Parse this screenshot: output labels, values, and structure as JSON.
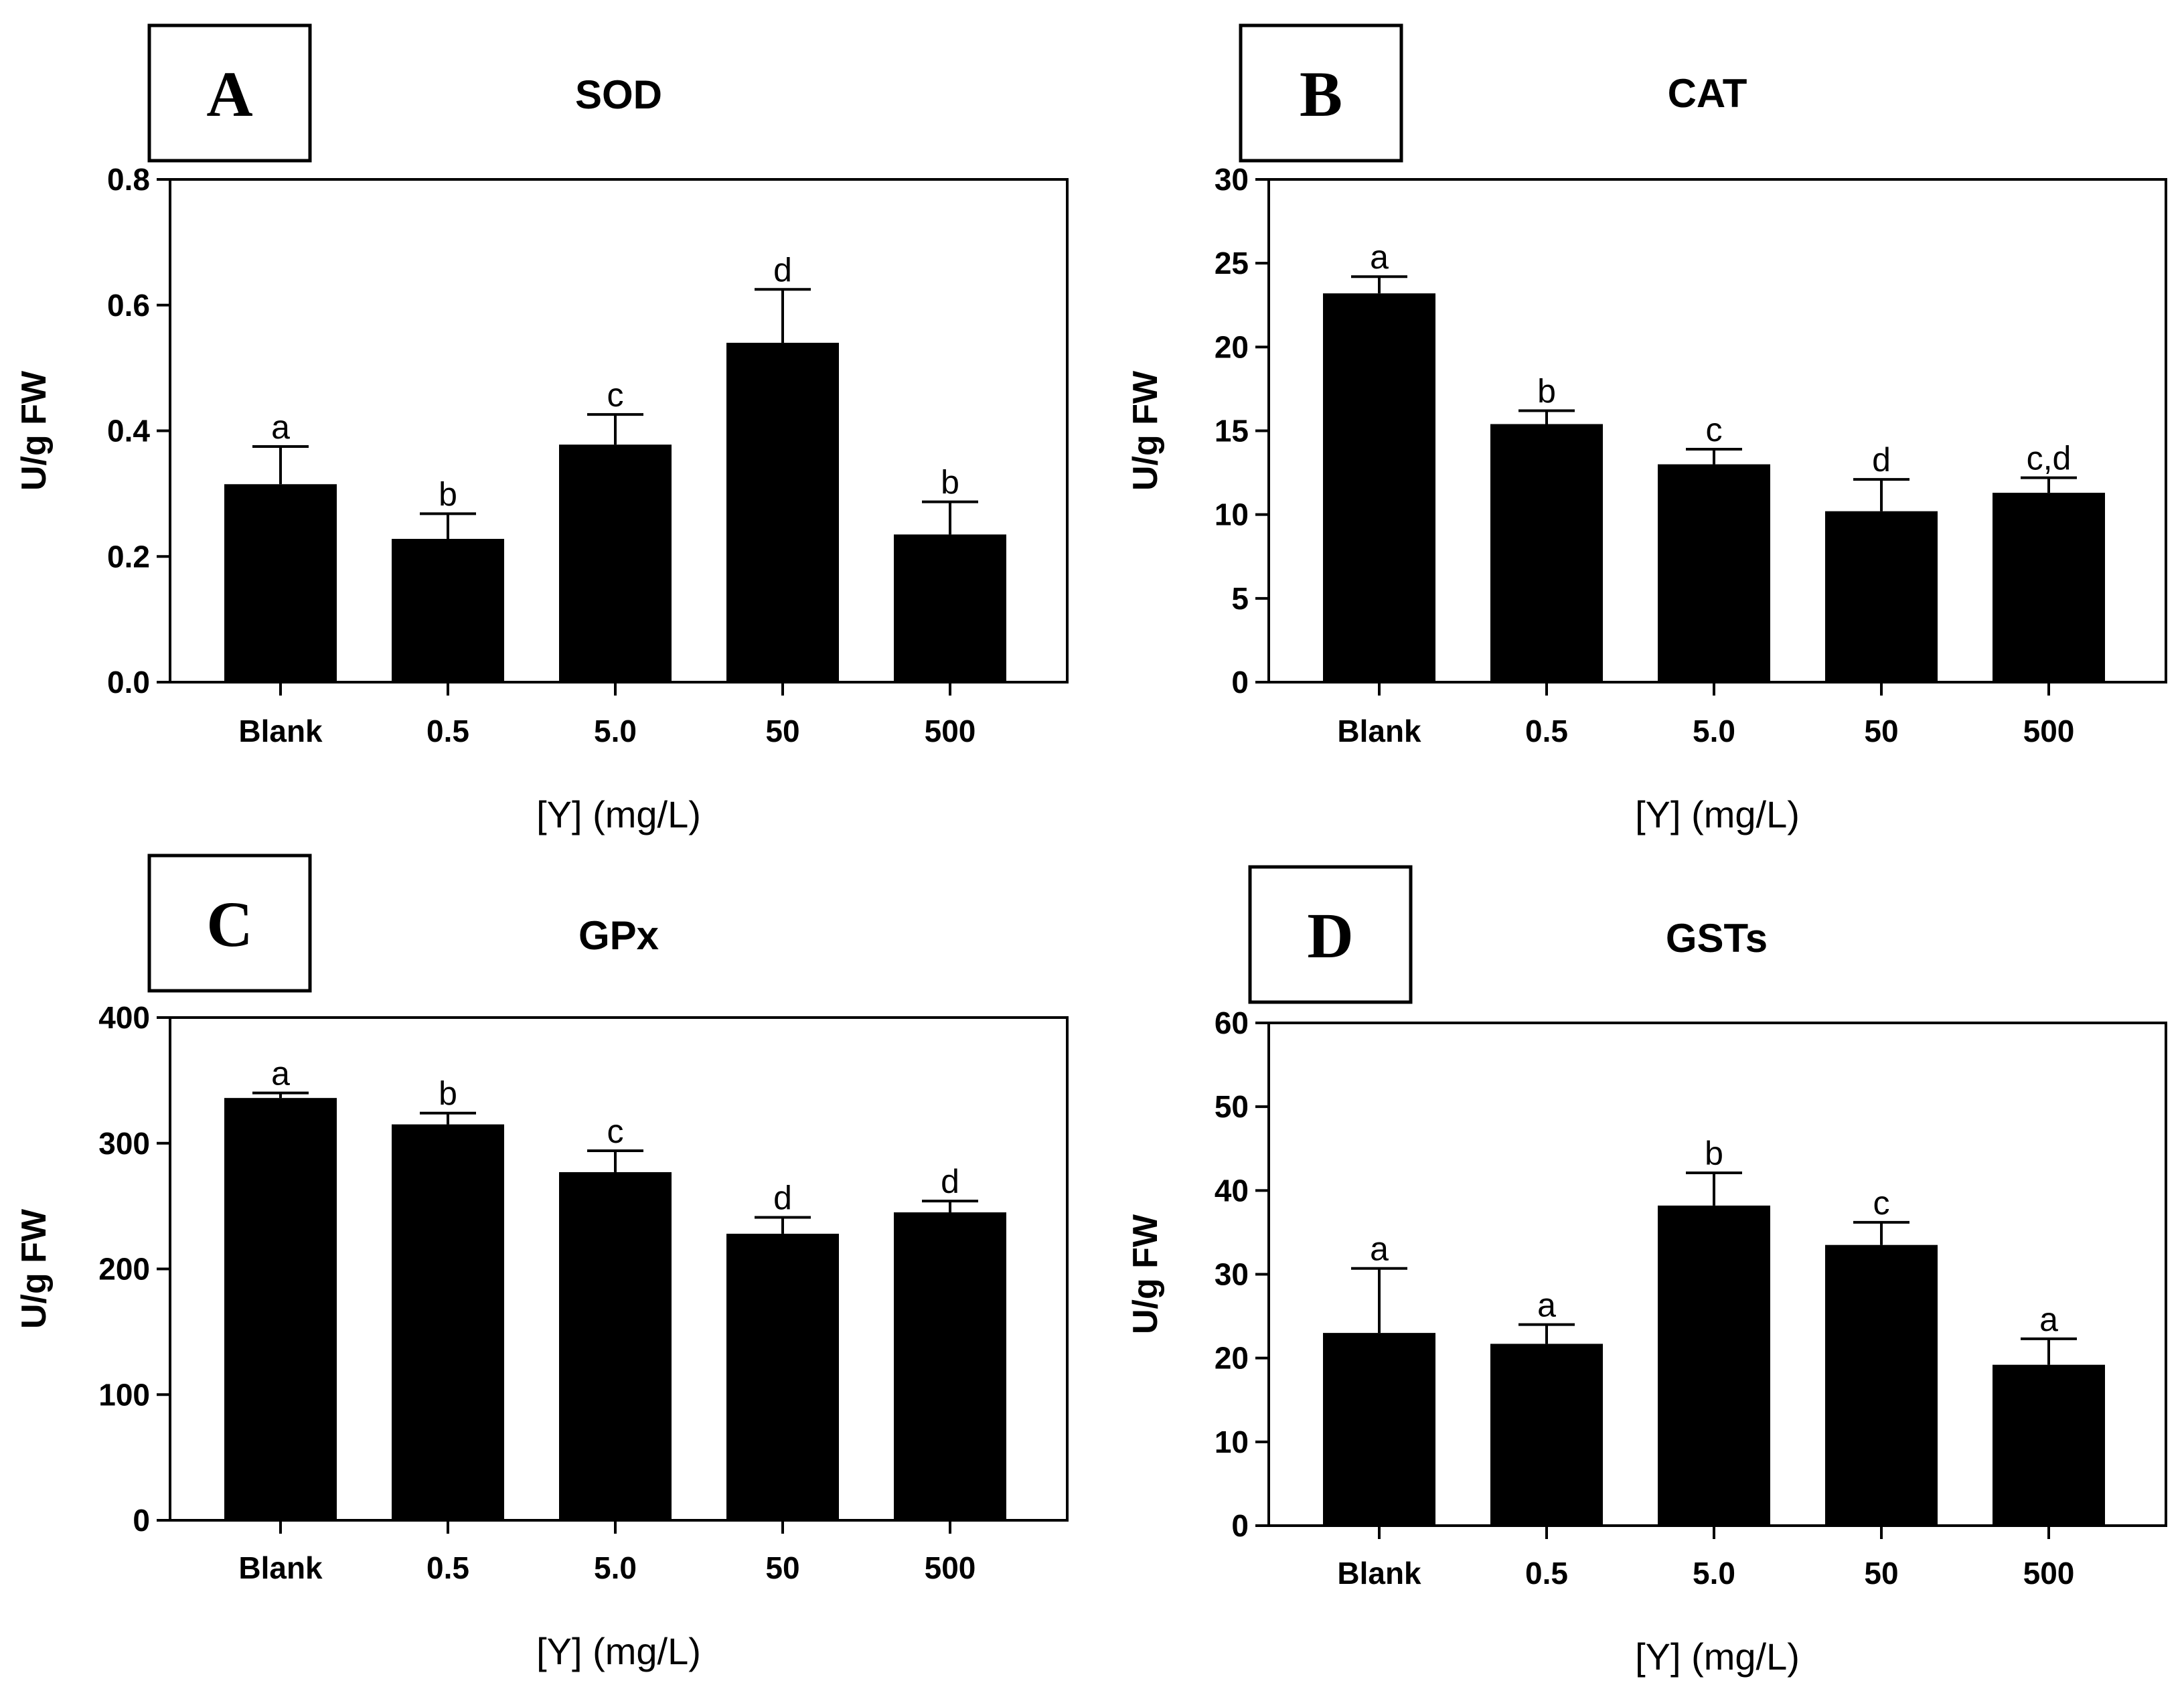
{
  "chart_data": [
    {
      "type": "bar",
      "panel": "A",
      "title": "SOD",
      "xlabel": "[Y] (mg/L)",
      "ylabel": "U/g FW",
      "ylim": [
        0,
        0.8
      ],
      "yticks": [
        "0.0",
        "0.2",
        "0.4",
        "0.6",
        "0.8"
      ],
      "categories": [
        "Blank",
        "0.5",
        "5.0",
        "50",
        "500"
      ],
      "values": [
        0.315,
        0.228,
        0.378,
        0.54,
        0.235
      ],
      "errors": [
        0.06,
        0.04,
        0.048,
        0.085,
        0.052
      ],
      "labels": [
        "a",
        "b",
        "c",
        "d",
        "b"
      ]
    },
    {
      "type": "bar",
      "panel": "B",
      "title": "CAT",
      "xlabel": "[Y] (mg/L)",
      "ylabel": "U/g FW",
      "ylim": [
        0,
        30
      ],
      "yticks": [
        "0",
        "5",
        "10",
        "15",
        "20",
        "25",
        "30"
      ],
      "categories": [
        "Blank",
        "0.5",
        "5.0",
        "50",
        "500"
      ],
      "values": [
        23.2,
        15.4,
        13.0,
        10.2,
        11.3
      ],
      "errors": [
        1.0,
        0.8,
        0.9,
        1.9,
        0.9
      ],
      "labels": [
        "a",
        "b",
        "c",
        "d",
        "c,d"
      ]
    },
    {
      "type": "bar",
      "panel": "C",
      "title": "GPx",
      "xlabel": "[Y] (mg/L)",
      "ylabel": "U/g FW",
      "ylim": [
        0,
        400
      ],
      "yticks": [
        "0",
        "100",
        "200",
        "300",
        "400"
      ],
      "categories": [
        "Blank",
        "0.5",
        "5.0",
        "50",
        "500"
      ],
      "values": [
        336,
        315,
        277,
        228,
        245
      ],
      "errors": [
        4,
        9,
        17,
        13,
        9
      ],
      "labels": [
        "a",
        "b",
        "c",
        "d",
        "d"
      ]
    },
    {
      "type": "bar",
      "panel": "D",
      "title": "GSTs",
      "xlabel": "[Y] (mg/L)",
      "ylabel": "U/g FW",
      "ylim": [
        0,
        60
      ],
      "yticks": [
        "0",
        "10",
        "20",
        "30",
        "40",
        "50",
        "60"
      ],
      "categories": [
        "Blank",
        "0.5",
        "5.0",
        "50",
        "500"
      ],
      "values": [
        23.0,
        21.7,
        38.2,
        33.5,
        19.2
      ],
      "errors": [
        7.7,
        2.3,
        3.9,
        2.7,
        3.1
      ],
      "labels": [
        "a",
        "a",
        "b",
        "c",
        "a"
      ]
    }
  ]
}
